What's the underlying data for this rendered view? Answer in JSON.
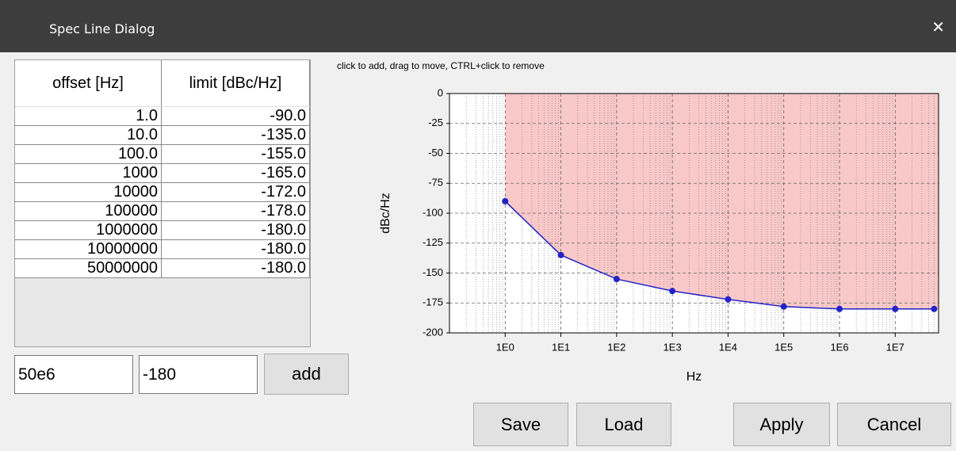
{
  "window": {
    "title": "Spec Line Dialog",
    "close": "✕"
  },
  "table": {
    "headers": [
      "offset [Hz]",
      "limit [dBc/Hz]"
    ],
    "rows": [
      [
        "1.0",
        "-90.0"
      ],
      [
        "10.0",
        "-135.0"
      ],
      [
        "100.0",
        "-155.0"
      ],
      [
        "1000",
        "-165.0"
      ],
      [
        "10000",
        "-172.0"
      ],
      [
        "100000",
        "-178.0"
      ],
      [
        "1000000",
        "-180.0"
      ],
      [
        "10000000",
        "-180.0"
      ],
      [
        "50000000",
        "-180.0"
      ]
    ]
  },
  "inputs": {
    "offset": "50e6",
    "limit": "-180",
    "add": "add"
  },
  "plot": {
    "type": "line",
    "hint": "click to add, drag to move, CTRL+click to remove",
    "xlabel": "Hz",
    "ylabel": "dBc/Hz",
    "log_x": true,
    "grid": true,
    "color": "#2323c8",
    "fill_color": "#f9c8c8",
    "x": [
      1,
      10,
      100,
      1000,
      10000,
      100000,
      1000000,
      10000000,
      50000000
    ],
    "values": [
      -90,
      -135,
      -155,
      -165,
      -172,
      -178,
      -180,
      -180,
      -180
    ],
    "xlim": [
      0.1,
      60000000
    ],
    "ylim": [
      -200,
      0
    ],
    "xticks": [
      {
        "value": 1,
        "label": "1E0"
      },
      {
        "value": 10,
        "label": "1E1"
      },
      {
        "value": 100,
        "label": "1E2"
      },
      {
        "value": 1000,
        "label": "1E3"
      },
      {
        "value": 10000,
        "label": "1E4"
      },
      {
        "value": 100000,
        "label": "1E5"
      },
      {
        "value": 1000000,
        "label": "1E6"
      },
      {
        "value": 10000000,
        "label": "1E7"
      }
    ],
    "yticks": [
      0,
      -25,
      -50,
      -75,
      -100,
      -125,
      -150,
      -175,
      -200
    ]
  },
  "buttons": [
    "Save",
    "Load",
    "Apply",
    "Cancel"
  ]
}
